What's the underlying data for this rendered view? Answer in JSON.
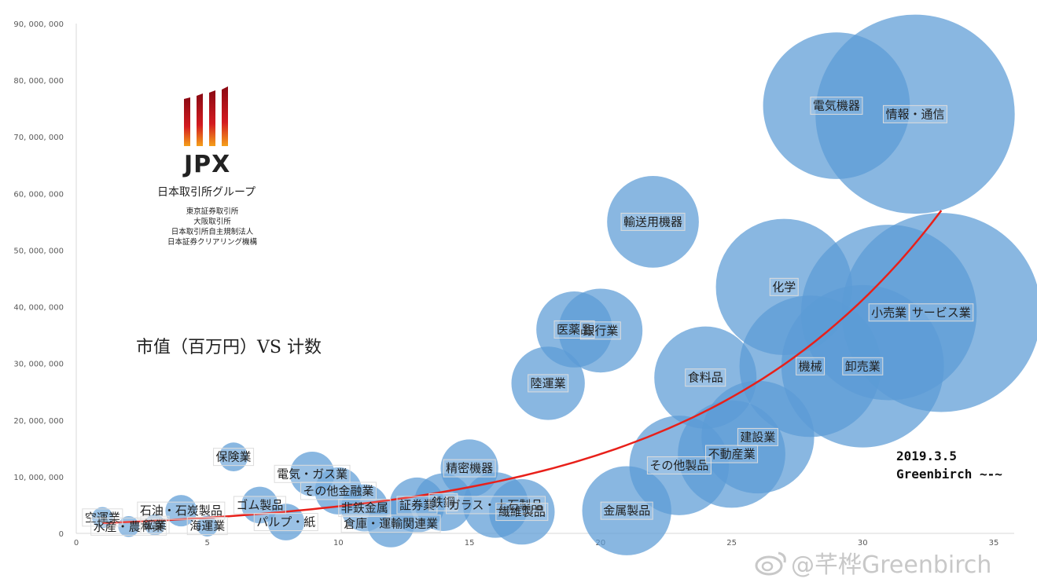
{
  "chart_data": {
    "type": "bubble",
    "title": "市值（百万円）VS 计数",
    "xlim": [
      0,
      35
    ],
    "ylim": [
      0,
      90000000
    ],
    "x_ticks": [
      0,
      5,
      10,
      15,
      20,
      25,
      30,
      35
    ],
    "x_tick_labels": [
      "0",
      "5",
      "10",
      "15",
      "20",
      "25",
      "30",
      "35"
    ],
    "y_ticks": [
      0,
      10000000,
      20000000,
      30000000,
      40000000,
      50000000,
      60000000,
      70000000,
      80000000,
      90000000
    ],
    "y_tick_labels": [
      "0",
      "10, 000, 000",
      "20, 000, 000",
      "30, 000, 000",
      "40, 000, 000",
      "50, 000, 000",
      "60, 000, 000",
      "70, 000, 000",
      "80, 000, 000",
      "90, 000, 000"
    ],
    "grid": false,
    "bubble_color": "#5b9bd5",
    "trend_color": "#e8201a",
    "trendline": {
      "type": "exponential",
      "x": [
        1,
        5,
        10,
        15,
        20,
        25,
        30,
        33
      ],
      "y": [
        1800000,
        2700000,
        4600000,
        8600000,
        15600000,
        27000000,
        44000000,
        57000000
      ]
    },
    "points": [
      {
        "label": "空運業",
        "x": 1,
        "y": 2800000,
        "size": 0.4
      },
      {
        "label": "水産・農林業",
        "x": 2,
        "y": 1200000,
        "size": 0.4
      },
      {
        "label": "鉱業",
        "x": 3,
        "y": 1500000,
        "size": 0.4
      },
      {
        "label": "石油・石炭製品",
        "x": 4,
        "y": 4000000,
        "size": 0.6
      },
      {
        "label": "海運業",
        "x": 5,
        "y": 1300000,
        "size": 0.4
      },
      {
        "label": "保険業",
        "x": 6,
        "y": 13500000,
        "size": 0.55
      },
      {
        "label": "ゴム製品",
        "x": 7,
        "y": 5000000,
        "size": 0.7
      },
      {
        "label": "パルプ・紙",
        "x": 8,
        "y": 2000000,
        "size": 0.7
      },
      {
        "label": "電気・ガス業",
        "x": 9,
        "y": 10500000,
        "size": 0.85
      },
      {
        "label": "その他金融業",
        "x": 10,
        "y": 7500000,
        "size": 0.9
      },
      {
        "label": "非鉄金属",
        "x": 11,
        "y": 4500000,
        "size": 0.9
      },
      {
        "label": "倉庫・運輸関連業",
        "x": 12,
        "y": 1700000,
        "size": 0.9
      },
      {
        "label": "証券業",
        "x": 13,
        "y": 5000000,
        "size": 1.05
      },
      {
        "label": "鉄鋼",
        "x": 14,
        "y": 5500000,
        "size": 1.1
      },
      {
        "label": "精密機器",
        "x": 15,
        "y": 11500000,
        "size": 1.1
      },
      {
        "label": "ガラス・土石製品",
        "x": 16,
        "y": 5000000,
        "size": 1.25
      },
      {
        "label": "繊維製品",
        "x": 17,
        "y": 3800000,
        "size": 1.25
      },
      {
        "label": "陸運業",
        "x": 18,
        "y": 26500000,
        "size": 1.4
      },
      {
        "label": "医薬品",
        "x": 19,
        "y": 36000000,
        "size": 1.45
      },
      {
        "label": "銀行業",
        "x": 20,
        "y": 35800000,
        "size": 1.6
      },
      {
        "label": "金属製品",
        "x": 21,
        "y": 4000000,
        "size": 1.7
      },
      {
        "label": "輸送用機器",
        "x": 22,
        "y": 55000000,
        "size": 1.75
      },
      {
        "label": "その他製品",
        "x": 23,
        "y": 12000000,
        "size": 1.9
      },
      {
        "label": "食料品",
        "x": 24,
        "y": 27500000,
        "size": 1.95
      },
      {
        "label": "不動産業",
        "x": 25,
        "y": 14000000,
        "size": 2.05
      },
      {
        "label": "建設業",
        "x": 26,
        "y": 17000000,
        "size": 2.15
      },
      {
        "label": "化学",
        "x": 27,
        "y": 43500000,
        "size": 2.6
      },
      {
        "label": "機械",
        "x": 28,
        "y": 29500000,
        "size": 2.7
      },
      {
        "label": "電気機器",
        "x": 29,
        "y": 75500000,
        "size": 2.8
      },
      {
        "label": "卸売業",
        "x": 30,
        "y": 29500000,
        "size": 3.1
      },
      {
        "label": "小売業",
        "x": 31,
        "y": 39000000,
        "size": 3.35
      },
      {
        "label": "情報・通信",
        "x": 32,
        "y": 74000000,
        "size": 3.8
      },
      {
        "label": "サービス業",
        "x": 33,
        "y": 39000000,
        "size": 3.8
      }
    ]
  },
  "logo": {
    "wordmark": "JPX",
    "subtitle": "日本取引所グループ",
    "lines": [
      "東京証券取引所",
      "大阪取引所",
      "日本取引所自主規制法人",
      "日本証券クリアリング機構"
    ]
  },
  "note": {
    "date": "2019.3.5",
    "author": "Greenbirch ~-~"
  },
  "watermark": "@芊桦Greenbirch"
}
